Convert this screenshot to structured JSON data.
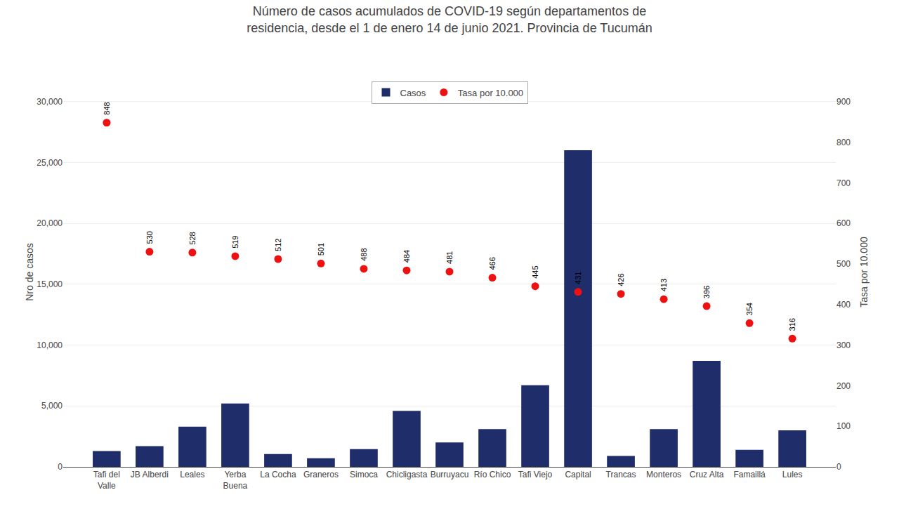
{
  "chart_data": {
    "type": "bar",
    "title": "Número de casos acumulados de COVID-19 según departamentos de\nresidencia, desde el 1 de enero 14 de junio 2021. Provincia de Tucumán",
    "categories": [
      "Tafi del\nValle",
      "JB Alberdi",
      "Leales",
      "Yerba\nBuena",
      "La Cocha",
      "Graneros",
      "Simoca",
      "Chicligasta",
      "Burruyacu",
      "Río Chico",
      "Tafi Viejo",
      "Capital",
      "Trancas",
      "Monteros",
      "Cruz Alta",
      "Famaillá",
      "Lules"
    ],
    "series": [
      {
        "name": "Casos",
        "type": "bar",
        "color": "#1F2D6B",
        "values": [
          1300,
          1700,
          3300,
          5200,
          1050,
          700,
          1450,
          4600,
          2000,
          3100,
          6700,
          26000,
          900,
          3100,
          8700,
          1400,
          3000
        ]
      },
      {
        "name": "Tasa por 10.000",
        "type": "scatter",
        "color": "#EE1111",
        "marker": "circle",
        "axis": "y2",
        "data_labels": true,
        "values": [
          848,
          530,
          528,
          519,
          512,
          501,
          488,
          484,
          481,
          466,
          445,
          431,
          426,
          413,
          396,
          354,
          316
        ]
      }
    ],
    "ylabel": "Nro de casos",
    "y2label": "Tasa por 10.000",
    "ylim": [
      0,
      32000
    ],
    "yticks": [
      0,
      {
        "value": 5000,
        "label": "5,000"
      },
      {
        "value": 10000,
        "label": "10,000"
      },
      {
        "value": 15000,
        "label": "15,000"
      },
      {
        "value": 20000,
        "label": "20,000"
      },
      {
        "value": 25000,
        "label": "25,000"
      },
      {
        "value": 30000,
        "label": "30,000"
      }
    ],
    "y2lim": [
      0,
      960
    ],
    "y2ticks": [
      0,
      100,
      200,
      300,
      400,
      500,
      600,
      700,
      800,
      900
    ],
    "grid": true,
    "legend": "upper center"
  }
}
